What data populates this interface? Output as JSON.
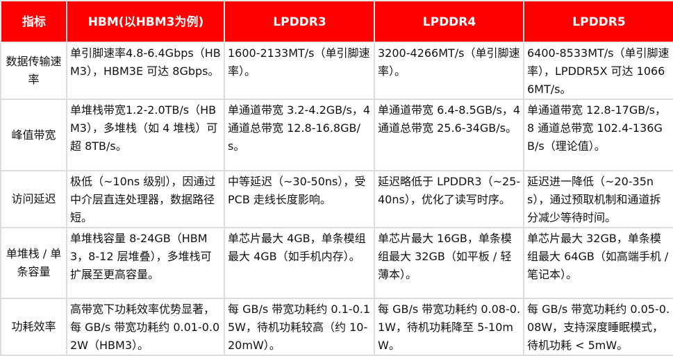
{
  "colors": {
    "header_bg": "#ff0000",
    "header_text": "#ffffff",
    "border": "#dcdcdc"
  },
  "headers": [
    "指标",
    "HBM(以HBM3为例)",
    "LPDDR3",
    "LPDDR4",
    "LPDDR5"
  ],
  "rows": [
    {
      "label": "数据传输速率",
      "cells": [
        "单引脚速率4.8-6.4Gbps（HBM3），HBM3E 可达 8Gbps。",
        "1600-2133MT/s（单引脚速率）。",
        "3200-4266MT/s（单引脚速率）。",
        "6400-8533MT/s（单引脚速率），LPDDR5X 可达 10666MT/s。"
      ]
    },
    {
      "label": "峰值带宽",
      "cells": [
        "单堆栈带宽1.2-2.0TB/s（HBM3），多堆栈（如 4 堆栈）可超 8TB/s。",
        "单通道带宽 3.2-4.2GB/s，4 通道总带宽 12.8-16.8GB/s。",
        "单通道带宽 6.4-8.5GB/s，4 通道总带宽 25.6-34GB/s。",
        "单通道带宽 12.8-17GB/s，8 通道总带宽 102.4-136GB/s（理论值）。"
      ]
    },
    {
      "label": "访问延迟",
      "cells": [
        "极低（~10ns 级别），因通过中介层直连处理器，数据路径短。",
        "中等延迟（~30-50ns），受 PCB 走线长度影响。",
        "延迟略低于 LPDDR3（~25-40ns），优化了读写时序。",
        "延迟进一降低（~20-35ns），通过预取机制和通道拆分减少等待时间。"
      ]
    },
    {
      "label": "单堆栈 / 单条容量",
      "cells": [
        "单堆栈容量 8-24GB（HBM3，8-12 层堆叠），多堆栈可扩展至更高容量。",
        "单芯片最大 4GB，单条模组最大 4GB（如手机内存）。",
        "单芯片最大 16GB，单条模组最大 32GB（如平板 / 轻薄本）。",
        "单芯片最大 32GB，单条模组最大 64GB（如高端手机 / 笔记本）。"
      ]
    },
    {
      "label": "功耗效率",
      "cells": [
        "高带宽下功耗效率优势显著，每 GB/s 带宽功耗约 0.01-0.02W（HBM3）。",
        "每 GB/s 带宽功耗约 0.1-0.15W，待机功耗较高（约 10-20mW）。",
        "每 GB/s 带宽功耗约 0.08-0.1W，待机功耗降至 5-10mW。",
        "每 GB/s 带宽功耗约 0.05-0.08W，支持深度睡眠模式，待机功耗 < 5mW。"
      ]
    }
  ]
}
